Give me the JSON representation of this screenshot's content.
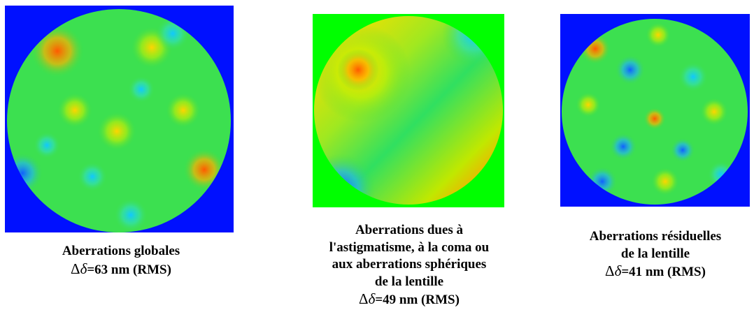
{
  "panels": [
    {
      "caption": [
        "Aberrations globales"
      ],
      "measure": {
        "symbol": "Δ",
        "variable": "δ",
        "text": "=63 nm (RMS)"
      }
    },
    {
      "caption": [
        "Aberrations dues à",
        "l'astigmatisme, à la coma ou",
        "aux aberrations sphériques",
        "de la lentille"
      ],
      "measure": {
        "symbol": "Δ",
        "variable": "δ",
        "text": "=49 nm (RMS)"
      }
    },
    {
      "caption": [
        "Aberrations résiduelles",
        "de la lentille"
      ],
      "measure": {
        "symbol": "Δ",
        "variable": "δ",
        "text": "=41 nm (RMS)"
      }
    }
  ]
}
